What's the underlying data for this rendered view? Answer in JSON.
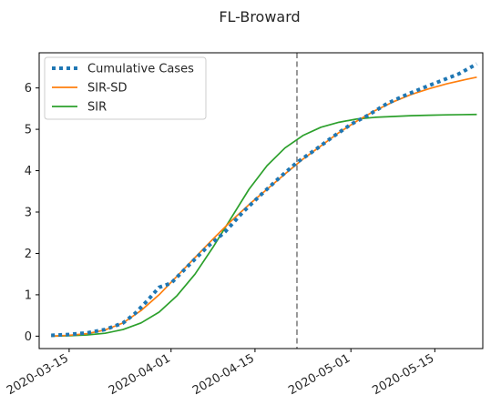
{
  "chart_data": {
    "type": "line",
    "title": "FL-Broward",
    "xlabel": "",
    "ylabel": "",
    "x_axis": {
      "type": "date",
      "range": [
        "2020-03-10",
        "2020-05-23"
      ],
      "ticks": [
        "2020-03-15",
        "2020-04-01",
        "2020-04-15",
        "2020-05-01",
        "2020-05-15"
      ]
    },
    "y_axis": {
      "range": [
        -0.3,
        6.85
      ],
      "ticks": [
        0,
        1,
        2,
        3,
        4,
        5,
        6
      ],
      "tick_labels": [
        "0",
        "1",
        "2",
        "3",
        "4",
        "5",
        "6"
      ]
    },
    "grid": false,
    "legend": "upper-left",
    "vline": {
      "x": "2020-04-22",
      "color": "#808080",
      "style": "dashed"
    },
    "series": [
      {
        "name": "Cumulative Cases",
        "color": "#1f77b4",
        "style": "dotted",
        "points": [
          [
            "2020-03-12",
            0.02
          ],
          [
            "2020-03-15",
            0.04
          ],
          [
            "2020-03-18",
            0.08
          ],
          [
            "2020-03-21",
            0.16
          ],
          [
            "2020-03-24",
            0.32
          ],
          [
            "2020-03-26",
            0.55
          ],
          [
            "2020-03-28",
            0.85
          ],
          [
            "2020-03-30",
            1.18
          ],
          [
            "2020-04-01",
            1.28
          ],
          [
            "2020-04-04",
            1.72
          ],
          [
            "2020-04-07",
            2.15
          ],
          [
            "2020-04-10",
            2.52
          ],
          [
            "2020-04-13",
            3.0
          ],
          [
            "2020-04-16",
            3.42
          ],
          [
            "2020-04-19",
            3.82
          ],
          [
            "2020-04-22",
            4.2
          ],
          [
            "2020-04-25",
            4.5
          ],
          [
            "2020-04-28",
            4.82
          ],
          [
            "2020-05-01",
            5.12
          ],
          [
            "2020-05-04",
            5.35
          ],
          [
            "2020-05-07",
            5.62
          ],
          [
            "2020-05-10",
            5.82
          ],
          [
            "2020-05-13",
            6.0
          ],
          [
            "2020-05-16",
            6.17
          ],
          [
            "2020-05-19",
            6.34
          ],
          [
            "2020-05-22",
            6.58
          ]
        ]
      },
      {
        "name": "SIR-SD",
        "color": "#ff7f0e",
        "style": "solid",
        "points": [
          [
            "2020-03-12",
            0.0
          ],
          [
            "2020-03-15",
            0.02
          ],
          [
            "2020-03-18",
            0.06
          ],
          [
            "2020-03-21",
            0.15
          ],
          [
            "2020-03-24",
            0.32
          ],
          [
            "2020-03-27",
            0.62
          ],
          [
            "2020-03-30",
            1.0
          ],
          [
            "2020-04-02",
            1.45
          ],
          [
            "2020-04-05",
            1.9
          ],
          [
            "2020-04-08",
            2.35
          ],
          [
            "2020-04-11",
            2.78
          ],
          [
            "2020-04-14",
            3.18
          ],
          [
            "2020-04-17",
            3.55
          ],
          [
            "2020-04-20",
            3.92
          ],
          [
            "2020-04-23",
            4.28
          ],
          [
            "2020-04-26",
            4.6
          ],
          [
            "2020-04-29",
            4.92
          ],
          [
            "2020-05-02",
            5.2
          ],
          [
            "2020-05-05",
            5.45
          ],
          [
            "2020-05-08",
            5.66
          ],
          [
            "2020-05-11",
            5.84
          ],
          [
            "2020-05-14",
            5.98
          ],
          [
            "2020-05-17",
            6.1
          ],
          [
            "2020-05-20",
            6.2
          ],
          [
            "2020-05-22",
            6.26
          ]
        ]
      },
      {
        "name": "SIR",
        "color": "#2ca02c",
        "style": "solid",
        "points": [
          [
            "2020-03-12",
            0.0
          ],
          [
            "2020-03-15",
            0.01
          ],
          [
            "2020-03-18",
            0.03
          ],
          [
            "2020-03-21",
            0.07
          ],
          [
            "2020-03-24",
            0.16
          ],
          [
            "2020-03-27",
            0.32
          ],
          [
            "2020-03-30",
            0.58
          ],
          [
            "2020-04-02",
            0.98
          ],
          [
            "2020-04-05",
            1.5
          ],
          [
            "2020-04-08",
            2.15
          ],
          [
            "2020-04-11",
            2.85
          ],
          [
            "2020-04-14",
            3.55
          ],
          [
            "2020-04-17",
            4.12
          ],
          [
            "2020-04-20",
            4.55
          ],
          [
            "2020-04-23",
            4.85
          ],
          [
            "2020-04-26",
            5.05
          ],
          [
            "2020-04-29",
            5.17
          ],
          [
            "2020-05-02",
            5.25
          ],
          [
            "2020-05-05",
            5.29
          ],
          [
            "2020-05-08",
            5.31
          ],
          [
            "2020-05-11",
            5.33
          ],
          [
            "2020-05-14",
            5.34
          ],
          [
            "2020-05-17",
            5.35
          ],
          [
            "2020-05-22",
            5.36
          ]
        ]
      }
    ]
  }
}
